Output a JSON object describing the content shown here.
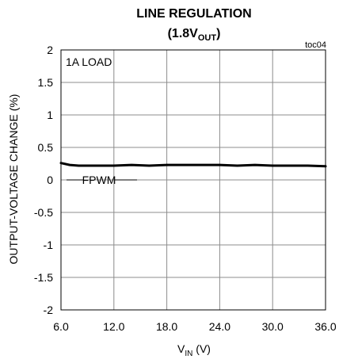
{
  "chart_data": {
    "type": "line",
    "title": "LINE REGULATION",
    "subtitle": {
      "main": "(1.8V",
      "sub": "OUT",
      "close": ")"
    },
    "figure_id": "toc04",
    "xlabel": {
      "main": "V",
      "sub": "IN",
      "rest": " (V)"
    },
    "ylabel": "OUTPUT-VOLTAGE CHANGE (%)",
    "xlim": [
      6,
      36
    ],
    "ylim": [
      -2,
      2
    ],
    "x_ticks": [
      6,
      12,
      18,
      24,
      30,
      36
    ],
    "x_tick_labels": [
      "6.0",
      "12.0",
      "18.0",
      "24.0",
      "30.0",
      "36.0"
    ],
    "y_ticks": [
      2,
      1.5,
      1,
      0.5,
      0,
      -0.5,
      -1,
      -1.5,
      -2
    ],
    "y_tick_labels": [
      "2",
      "1.5",
      "1",
      "0.5",
      "0",
      "-0.5",
      "-1",
      "-1.5",
      "-2"
    ],
    "grid": true,
    "annotation_load": "1A LOAD",
    "series": [
      {
        "name": "FPWM",
        "x": [
          6,
          7,
          8,
          10,
          12,
          14,
          16,
          18,
          20,
          22,
          24,
          26,
          28,
          30,
          32,
          34,
          36
        ],
        "y": [
          0.26,
          0.23,
          0.22,
          0.22,
          0.22,
          0.23,
          0.22,
          0.23,
          0.23,
          0.23,
          0.23,
          0.22,
          0.23,
          0.22,
          0.22,
          0.22,
          0.21
        ]
      }
    ]
  }
}
